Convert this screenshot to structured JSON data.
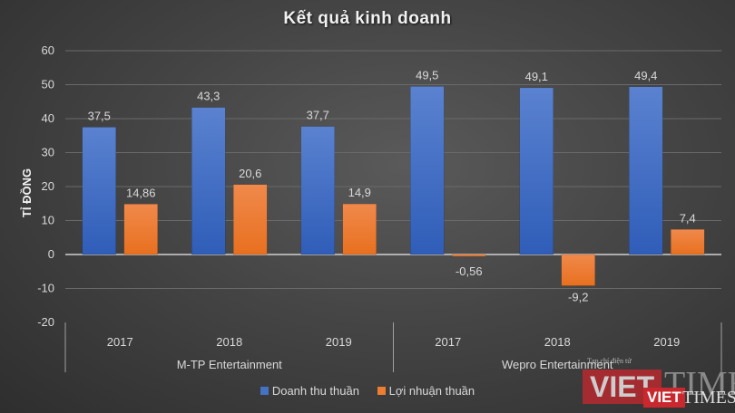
{
  "chart_data": {
    "type": "bar",
    "title": "Kết quả kinh doanh",
    "ylabel": "TỈ ĐỒNG",
    "xlabel": "",
    "ylim": [
      -20,
      60
    ],
    "yticks": [
      60,
      50,
      40,
      30,
      20,
      10,
      0,
      -10,
      -20
    ],
    "ytick_labels": [
      "60",
      "50",
      "40",
      "30",
      "20",
      "10",
      "0",
      "-10",
      "-20"
    ],
    "grid": true,
    "legend_position": "bottom",
    "groups": [
      {
        "name": "M-TP Entertainment",
        "categories": [
          "2017",
          "2018",
          "2019"
        ]
      },
      {
        "name": "Wepro Entertainment",
        "categories": [
          "2017",
          "2018",
          "2019"
        ]
      }
    ],
    "categories": [
      "2017",
      "2018",
      "2019",
      "2017",
      "2018",
      "2019"
    ],
    "series": [
      {
        "name": "Doanh thu thuần",
        "color": "#4472c4",
        "values": [
          37.5,
          43.3,
          37.7,
          49.5,
          49.1,
          49.4
        ],
        "labels": [
          "37,5",
          "43,3",
          "37,7",
          "49,5",
          "49,1",
          "49,4"
        ]
      },
      {
        "name": "Lợi nhuận thuần",
        "color": "#ed7d31",
        "values": [
          14.86,
          20.6,
          14.9,
          -0.56,
          -9.2,
          7.4
        ],
        "labels": [
          "14,86",
          "20,6",
          "14,9",
          "-0,56",
          "-9,2",
          "7,4"
        ]
      }
    ]
  },
  "watermark": {
    "brand_left": "VIET",
    "brand_right": "TIMES",
    "tagline": "Tạp chí điện tử"
  }
}
